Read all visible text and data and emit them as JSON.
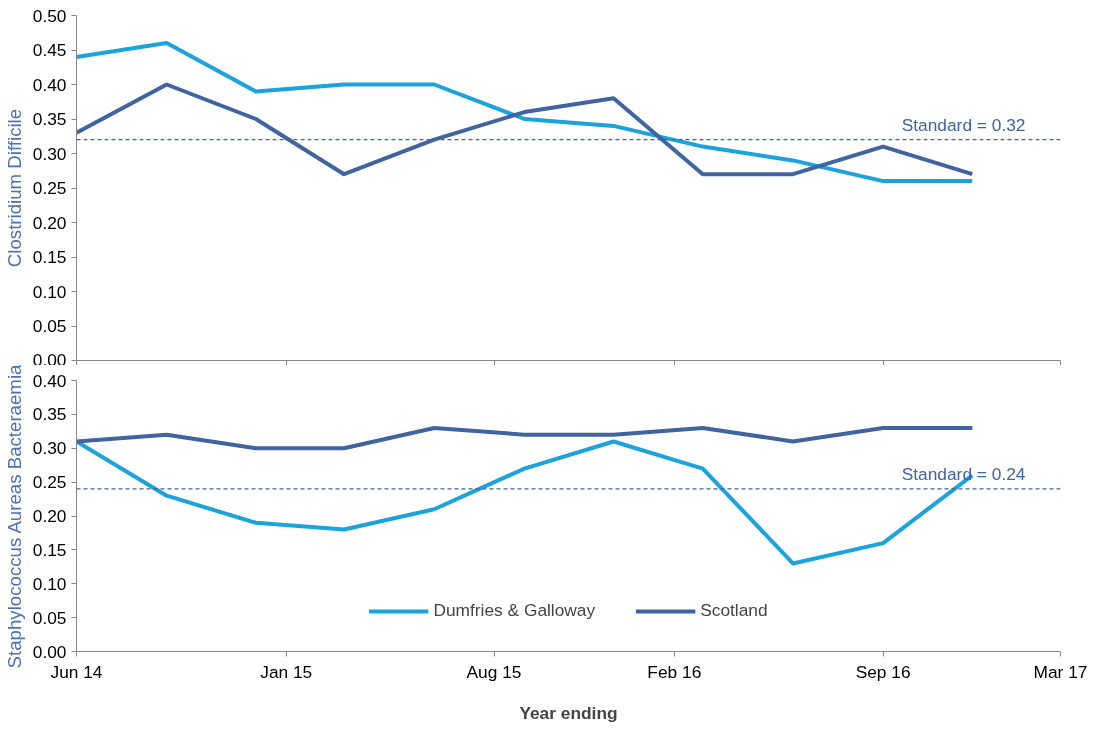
{
  "chart_data": [
    {
      "type": "line",
      "ylabel": "Clostridium Difficile",
      "x": [
        "2014-06",
        "2014-09",
        "2014-12",
        "2015-03",
        "2015-06",
        "2015-09",
        "2015-12",
        "2016-03",
        "2016-06",
        "2016-09",
        "2016-12"
      ],
      "series": [
        {
          "color": "#1aa3dc",
          "values": [
            0.44,
            0.46,
            0.39,
            0.4,
            0.4,
            0.35,
            0.34,
            0.31,
            0.29,
            0.26,
            0.26
          ]
        },
        {
          "color": "#3f64a0",
          "values": [
            0.33,
            0.4,
            0.35,
            0.27,
            0.32,
            0.36,
            0.38,
            0.27,
            0.27,
            0.31,
            0.27
          ]
        }
      ],
      "xlim": [
        "2014-06",
        "2017-03"
      ],
      "xticks": [
        {
          "value": "2014-06",
          "label": null
        },
        {
          "value": "2015-01",
          "label": null
        },
        {
          "value": "2015-08",
          "label": null
        },
        {
          "value": "2016-02",
          "label": null
        },
        {
          "value": "2016-09",
          "label": null
        },
        {
          "value": "2017-03",
          "label": null
        }
      ],
      "ylim": [
        0,
        0.5
      ],
      "yticks": [
        {
          "value": 0,
          "label": "0.00"
        },
        {
          "value": 0.05,
          "label": "0.05"
        },
        {
          "value": 0.1,
          "label": "0.10"
        },
        {
          "value": 0.15,
          "label": "0.15"
        },
        {
          "value": 0.2,
          "label": "0.20"
        },
        {
          "value": 0.25,
          "label": "0.25"
        },
        {
          "value": 0.3,
          "label": "0.30"
        },
        {
          "value": 0.35,
          "label": "0.35"
        },
        {
          "value": 0.4,
          "label": "0.40"
        },
        {
          "value": 0.45,
          "label": "0.45"
        },
        {
          "value": 0.5,
          "label": "0.50"
        }
      ],
      "ref_lines": [
        {
          "axis": "y",
          "value": 0.32,
          "label": "Standard = 0.32",
          "color": "#3f64a0",
          "line_style": "dashed"
        }
      ],
      "tick_labels": "y",
      "grid": false,
      "legend": false,
      "line_style": "solid"
    },
    {
      "type": "line",
      "ylabel": "Staphylococcus Aureas Bacteraemia",
      "xlabel": "Year ending",
      "x": [
        "2014-06",
        "2014-09",
        "2014-12",
        "2015-03",
        "2015-06",
        "2015-09",
        "2015-12",
        "2016-03",
        "2016-06",
        "2016-09",
        "2016-12"
      ],
      "series": [
        {
          "name": "Dumfries & Galloway",
          "color": "#1aa3dc",
          "values": [
            0.31,
            0.23,
            0.19,
            0.18,
            0.21,
            0.27,
            0.31,
            0.27,
            0.13,
            0.16,
            0.26
          ]
        },
        {
          "name": "Scotland",
          "color": "#3f64a0",
          "values": [
            0.31,
            0.32,
            0.3,
            0.3,
            0.33,
            0.32,
            0.32,
            0.33,
            0.31,
            0.33,
            0.33
          ]
        }
      ],
      "xlim": [
        "2014-06",
        "2017-03"
      ],
      "xticks": [
        {
          "value": "2014-06",
          "label": "Jun 14"
        },
        {
          "value": "2015-01",
          "label": "Jan 15"
        },
        {
          "value": "2015-08",
          "label": "Aug 15"
        },
        {
          "value": "2016-02",
          "label": "Feb 16"
        },
        {
          "value": "2016-09",
          "label": "Sep 16"
        },
        {
          "value": "2017-03",
          "label": "Mar 17"
        }
      ],
      "ylim": [
        0,
        0.4
      ],
      "yticks": [
        {
          "value": 0,
          "label": "0.00"
        },
        {
          "value": 0.05,
          "label": "0.05"
        },
        {
          "value": 0.1,
          "label": "0.10"
        },
        {
          "value": 0.15,
          "label": "0.15"
        },
        {
          "value": 0.2,
          "label": "0.20"
        },
        {
          "value": 0.25,
          "label": "0.25"
        },
        {
          "value": 0.3,
          "label": "0.30"
        },
        {
          "value": 0.35,
          "label": "0.35"
        },
        {
          "value": 0.4,
          "label": "0.40"
        }
      ],
      "ref_lines": [
        {
          "axis": "y",
          "value": 0.24,
          "label": "Standard = 0.24",
          "color": "#3f64a0",
          "line_style": "dashed"
        }
      ],
      "grid": false,
      "legend": "bottom",
      "line_style": "solid"
    }
  ]
}
